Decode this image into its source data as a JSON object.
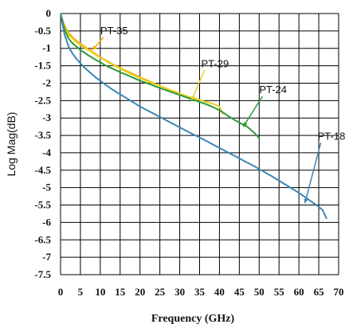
{
  "chart_data": {
    "type": "line",
    "title": "",
    "xlabel": "Frequency (GHz)",
    "ylabel": "Log Mag(dB)",
    "xlim": [
      0,
      70
    ],
    "ylim": [
      -7.5,
      0
    ],
    "xticks": [
      "0",
      "5",
      "10",
      "15",
      "20",
      "25",
      "30",
      "35",
      "40",
      "45",
      "50",
      "55",
      "60",
      "65",
      "70"
    ],
    "yticks": [
      "0",
      "-0.5",
      "-1",
      "-1.5",
      "-2",
      "-2.5",
      "-3",
      "-3.5",
      "-4",
      "-4.5",
      "-5",
      "-5.5",
      "-6",
      "-6.5",
      "-7",
      "-7.5"
    ],
    "grid": true,
    "colors": {
      "PT-35": "#f5a800",
      "PT-29": "#e8d220",
      "PT-24": "#2e9a3a",
      "PT-18": "#3a86b8"
    },
    "series": [
      {
        "name": "PT-35",
        "x": [
          0,
          1,
          2,
          3,
          4,
          5,
          6,
          7,
          8,
          9,
          10,
          11,
          12,
          13,
          14,
          15,
          16,
          17,
          18,
          19,
          20,
          21,
          22,
          23,
          24,
          25,
          26,
          27,
          28,
          29,
          30,
          31,
          32,
          33,
          34
        ],
        "y": [
          0,
          -0.35,
          -0.55,
          -0.68,
          -0.78,
          -0.87,
          -0.95,
          -1.03,
          -1.1,
          -1.18,
          -1.25,
          -1.32,
          -1.38,
          -1.45,
          -1.5,
          -1.56,
          -1.62,
          -1.67,
          -1.72,
          -1.77,
          -1.83,
          -1.88,
          -1.93,
          -1.98,
          -2.03,
          -2.08,
          -2.12,
          -2.17,
          -2.22,
          -2.27,
          -2.31,
          -2.35,
          -2.4,
          -2.45,
          -2.5
        ]
      },
      {
        "name": "PT-29",
        "x": [
          0,
          1,
          2,
          3,
          4,
          5,
          6,
          7,
          8,
          9,
          10,
          11,
          12,
          13,
          14,
          15,
          16,
          17,
          18,
          19,
          20,
          21,
          22,
          23,
          24,
          25,
          26,
          27,
          28,
          29,
          30,
          31,
          32,
          33,
          34,
          35,
          36,
          37,
          38,
          39,
          40,
          41
        ],
        "y": [
          0,
          -0.4,
          -0.62,
          -0.72,
          -0.82,
          -0.9,
          -0.98,
          -1.05,
          -1.12,
          -1.2,
          -1.27,
          -1.33,
          -1.4,
          -1.46,
          -1.52,
          -1.58,
          -1.64,
          -1.7,
          -1.75,
          -1.8,
          -1.85,
          -1.9,
          -1.95,
          -2,
          -2.04,
          -2.08,
          -2.12,
          -2.17,
          -2.21,
          -2.25,
          -2.3,
          -2.34,
          -2.38,
          -2.42,
          -2.45,
          -2.48,
          -2.52,
          -2.55,
          -2.58,
          -2.62,
          -2.67,
          -2.9
        ]
      },
      {
        "name": "PT-24",
        "x": [
          0,
          1,
          2,
          3,
          4,
          5,
          6,
          7,
          8,
          9,
          10,
          11,
          12,
          13,
          14,
          15,
          16,
          17,
          18,
          19,
          20,
          21,
          22,
          23,
          24,
          25,
          26,
          27,
          28,
          29,
          30,
          31,
          32,
          33,
          34,
          35,
          36,
          37,
          38,
          39,
          40,
          41,
          42,
          43,
          44,
          45,
          46,
          47,
          48,
          49,
          50
        ],
        "y": [
          0,
          -0.45,
          -0.72,
          -0.85,
          -0.95,
          -1.05,
          -1.12,
          -1.2,
          -1.27,
          -1.34,
          -1.4,
          -1.47,
          -1.53,
          -1.58,
          -1.63,
          -1.69,
          -1.73,
          -1.78,
          -1.83,
          -1.88,
          -1.93,
          -1.97,
          -2.01,
          -2.05,
          -2.1,
          -2.14,
          -2.18,
          -2.22,
          -2.26,
          -2.3,
          -2.34,
          -2.38,
          -2.42,
          -2.46,
          -2.5,
          -2.54,
          -2.58,
          -2.62,
          -2.67,
          -2.72,
          -2.78,
          -2.85,
          -2.93,
          -3,
          -3.07,
          -3.13,
          -3.2,
          -3.25,
          -3.35,
          -3.45,
          -3.58
        ]
      },
      {
        "name": "PT-18",
        "x": [
          0,
          1,
          2,
          3,
          4,
          5,
          6,
          7,
          8,
          9,
          10,
          11,
          12,
          13,
          14,
          15,
          16,
          17,
          18,
          19,
          20,
          21,
          22,
          23,
          24,
          25,
          26,
          27,
          28,
          29,
          30,
          31,
          32,
          33,
          34,
          35,
          36,
          37,
          38,
          39,
          40,
          41,
          42,
          43,
          44,
          45,
          46,
          47,
          48,
          49,
          50,
          51,
          52,
          53,
          54,
          55,
          56,
          57,
          58,
          59,
          60,
          61,
          62,
          63,
          64,
          65,
          66,
          67
        ],
        "y": [
          0,
          -0.6,
          -0.95,
          -1.15,
          -1.3,
          -1.43,
          -1.55,
          -1.65,
          -1.75,
          -1.85,
          -1.93,
          -2.02,
          -2.1,
          -2.18,
          -2.25,
          -2.32,
          -2.39,
          -2.46,
          -2.53,
          -2.6,
          -2.67,
          -2.73,
          -2.79,
          -2.85,
          -2.91,
          -2.97,
          -3.03,
          -3.09,
          -3.15,
          -3.21,
          -3.27,
          -3.33,
          -3.39,
          -3.45,
          -3.5,
          -3.56,
          -3.62,
          -3.68,
          -3.74,
          -3.8,
          -3.86,
          -3.92,
          -3.98,
          -4.04,
          -4.1,
          -4.16,
          -4.22,
          -4.28,
          -4.34,
          -4.4,
          -4.47,
          -4.53,
          -4.6,
          -4.66,
          -4.73,
          -4.8,
          -4.87,
          -4.94,
          -5.01,
          -5.08,
          -5.15,
          -5.23,
          -5.31,
          -5.39,
          -5.47,
          -5.55,
          -5.65,
          -5.9
        ]
      }
    ],
    "annotations": [
      {
        "text": "PT-35",
        "series": "PT-35",
        "x": 8,
        "y": -1.05
      },
      {
        "text": "PT-29",
        "series": "PT-29",
        "x": 33,
        "y": -2.5
      },
      {
        "text": "PT-24",
        "series": "PT-24",
        "x": 46,
        "y": -3.25
      },
      {
        "text": "PT-18",
        "series": "PT-18",
        "x": 61.5,
        "y": -5.45
      }
    ]
  }
}
